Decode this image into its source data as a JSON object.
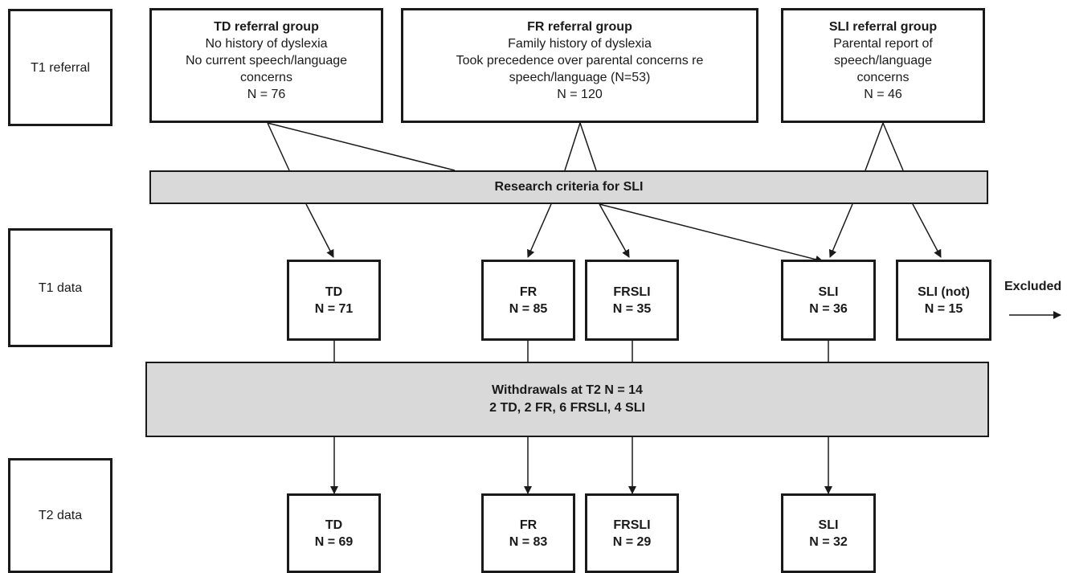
{
  "stages": {
    "t1_referral": "T1 referral",
    "t1_data": "T1 data",
    "t2_data": "T2 data"
  },
  "referral_groups": {
    "td": {
      "title": "TD referral group",
      "lines": [
        "No history of dyslexia",
        "No current speech/language",
        "concerns",
        "N = 76"
      ]
    },
    "fr": {
      "title": "FR referral group",
      "lines": [
        "Family history of dyslexia",
        "Took precedence over parental concerns re",
        "speech/language (N=53)",
        "N = 120"
      ]
    },
    "sli": {
      "title": "SLI referral group",
      "lines": [
        "Parental report of",
        "speech/language",
        "concerns",
        "N = 46"
      ]
    }
  },
  "criteria_band": {
    "label": "Research criteria for SLI"
  },
  "t1_groups": [
    {
      "name": "TD",
      "n": "N = 71"
    },
    {
      "name": "FR",
      "n": "N = 85"
    },
    {
      "name": "FRSLI",
      "n": "N = 35"
    },
    {
      "name": "SLI",
      "n": "N = 36"
    },
    {
      "name": "SLI (not)",
      "n": "N = 15"
    }
  ],
  "excluded_label": "Excluded",
  "withdrawals_band": {
    "line1": "Withdrawals at T2 N = 14",
    "line2": "2 TD, 2 FR, 6 FRSLI, 4 SLI"
  },
  "t2_groups": [
    {
      "name": "TD",
      "n": "N = 69"
    },
    {
      "name": "FR",
      "n": "N = 83"
    },
    {
      "name": "FRSLI",
      "n": "N = 29"
    },
    {
      "name": "SLI",
      "n": "N = 32"
    }
  ],
  "colors": {
    "line": "#1a1a1a",
    "band_fill": "#d9d9d9"
  }
}
